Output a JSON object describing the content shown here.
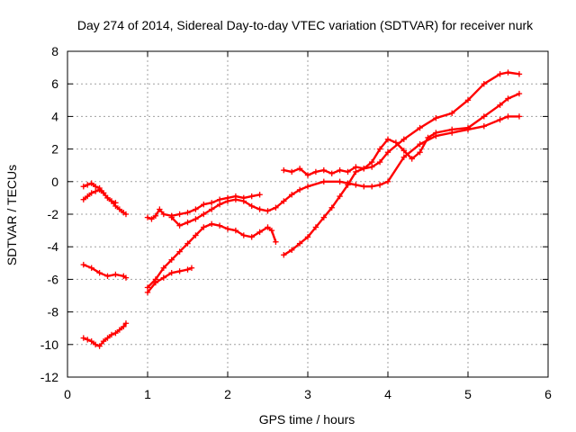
{
  "chart_data": {
    "type": "scatter",
    "title": "Day 274 of 2014, Sidereal Day-to-day VTEC variation (SDTVAR) for receiver nurk",
    "xlabel": "GPS time / hours",
    "ylabel": "SDTVAR / TECUs",
    "xlim": [
      0,
      6
    ],
    "ylim": [
      -12,
      8
    ],
    "xticks": [
      0,
      1,
      2,
      3,
      4,
      5,
      6
    ],
    "yticks": [
      -12,
      -10,
      -8,
      -6,
      -4,
      -2,
      0,
      2,
      4,
      6,
      8
    ],
    "grid": true,
    "color": "#ff0000",
    "marker": "plus",
    "series": [
      {
        "x": [
          0.2,
          0.25,
          0.3,
          0.35,
          0.4,
          0.45,
          0.5,
          0.55,
          0.6,
          0.65,
          0.7,
          0.73
        ],
        "y": [
          -0.3,
          -0.2,
          -0.1,
          -0.3,
          -0.4,
          -0.7,
          -1.0,
          -1.2,
          -1.5,
          -1.7,
          -1.9,
          -2.0
        ]
      },
      {
        "x": [
          0.2,
          0.25,
          0.3,
          0.35,
          0.4,
          0.45,
          0.5,
          0.55,
          0.6
        ],
        "y": [
          -1.1,
          -0.9,
          -0.7,
          -0.6,
          -0.5,
          -0.7,
          -1.0,
          -1.2,
          -1.3
        ]
      },
      {
        "x": [
          0.2,
          0.3,
          0.4,
          0.5,
          0.6,
          0.7,
          0.73
        ],
        "y": [
          -5.1,
          -5.3,
          -5.6,
          -5.8,
          -5.7,
          -5.8,
          -5.9
        ]
      },
      {
        "x": [
          0.2,
          0.25,
          0.3,
          0.35,
          0.4,
          0.45,
          0.5,
          0.55,
          0.6,
          0.65,
          0.7,
          0.73
        ],
        "y": [
          -9.6,
          -9.7,
          -9.8,
          -10.0,
          -10.1,
          -9.8,
          -9.6,
          -9.4,
          -9.3,
          -9.1,
          -8.9,
          -8.7
        ]
      },
      {
        "x": [
          1.0,
          1.05,
          1.1,
          1.15,
          1.2,
          1.3,
          1.4,
          1.5,
          1.6,
          1.7,
          1.8,
          1.9,
          2.0,
          2.1,
          2.2,
          2.3,
          2.4
        ],
        "y": [
          -2.2,
          -2.3,
          -2.1,
          -1.7,
          -2.0,
          -2.1,
          -2.0,
          -1.9,
          -1.7,
          -1.4,
          -1.3,
          -1.1,
          -1.0,
          -0.9,
          -1.0,
          -0.9,
          -0.8
        ]
      },
      {
        "x": [
          1.3,
          1.4,
          1.5,
          1.6,
          1.7,
          1.8,
          1.9,
          2.0,
          2.1,
          2.2,
          2.3,
          2.4,
          2.5,
          2.6,
          2.7,
          2.8,
          2.9,
          3.0,
          3.2,
          3.4,
          3.5,
          3.6,
          3.7,
          3.8,
          3.9,
          4.0,
          4.2,
          4.4,
          4.6,
          4.8,
          5.0,
          5.2,
          5.4,
          5.5,
          5.64
        ],
        "y": [
          -2.2,
          -2.7,
          -2.5,
          -2.3,
          -2.0,
          -1.7,
          -1.4,
          -1.2,
          -1.1,
          -1.2,
          -1.5,
          -1.7,
          -1.8,
          -1.6,
          -1.2,
          -0.8,
          -0.5,
          -0.3,
          0.0,
          0.0,
          -0.1,
          -0.2,
          -0.3,
          -0.3,
          -0.2,
          0.0,
          1.5,
          2.3,
          2.8,
          3.0,
          3.2,
          3.4,
          3.8,
          4.0,
          4.0
        ]
      },
      {
        "x": [
          1.0,
          1.1,
          1.2,
          1.3,
          1.4,
          1.5,
          1.6,
          1.7,
          1.8,
          1.9,
          2.0,
          2.1,
          2.2,
          2.3,
          2.4,
          2.5,
          2.55,
          2.6
        ],
        "y": [
          -6.5,
          -6.0,
          -5.3,
          -4.8,
          -4.3,
          -3.8,
          -3.3,
          -2.8,
          -2.6,
          -2.7,
          -2.9,
          -3.0,
          -3.3,
          -3.4,
          -3.1,
          -2.8,
          -3.0,
          -3.7
        ]
      },
      {
        "x": [
          1.0,
          1.1,
          1.2,
          1.3,
          1.4,
          1.5,
          1.55
        ],
        "y": [
          -6.8,
          -6.2,
          -5.9,
          -5.6,
          -5.5,
          -5.4,
          -5.3
        ]
      },
      {
        "x": [
          2.7,
          2.8,
          2.9,
          3.0,
          3.1,
          3.2,
          3.3,
          3.4,
          3.5,
          3.6,
          3.7,
          3.8,
          3.9,
          4.0,
          4.2,
          4.4,
          4.6,
          4.8,
          5.0,
          5.2,
          5.4,
          5.5,
          5.64
        ],
        "y": [
          0.7,
          0.6,
          0.8,
          0.4,
          0.6,
          0.7,
          0.5,
          0.7,
          0.6,
          0.9,
          0.8,
          0.9,
          1.2,
          1.8,
          2.6,
          3.3,
          3.9,
          4.2,
          5.0,
          6.0,
          6.6,
          6.7,
          6.6
        ]
      },
      {
        "x": [
          2.7,
          2.8,
          2.9,
          3.0,
          3.1,
          3.2,
          3.3,
          3.4,
          3.5,
          3.6,
          3.7,
          3.8,
          3.9,
          4.0,
          4.1,
          4.2,
          4.3,
          4.4,
          4.5,
          4.6,
          4.8,
          5.0,
          5.2,
          5.4,
          5.5,
          5.64
        ],
        "y": [
          -4.5,
          -4.2,
          -3.8,
          -3.4,
          -2.8,
          -2.2,
          -1.6,
          -0.9,
          -0.2,
          0.6,
          0.8,
          1.2,
          2.0,
          2.6,
          2.4,
          1.9,
          1.4,
          1.8,
          2.7,
          3.0,
          3.2,
          3.3,
          4.0,
          4.7,
          5.1,
          5.4
        ]
      }
    ]
  }
}
